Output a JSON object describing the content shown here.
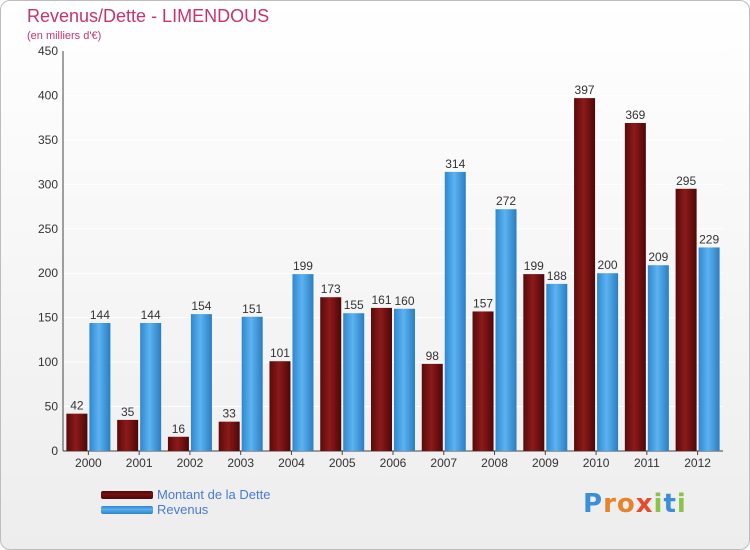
{
  "title": "Revenus/Dette - LIMENDOUS",
  "subtitle": "(en milliers d'€)",
  "colors": {
    "dette": "#7a1010",
    "revenus": "#3f9be0",
    "title": "#c8336b",
    "legend_text": "#4a7ad6"
  },
  "legend": {
    "items": [
      {
        "label": "Montant de la Dette",
        "color": "#7a1010"
      },
      {
        "label": "Revenus",
        "color": "#3f9be0"
      }
    ]
  },
  "logo": {
    "text": "Proxiti",
    "letters": [
      "P",
      "r",
      "o",
      "x",
      "i",
      "t",
      "i"
    ]
  },
  "chart_data": {
    "type": "bar",
    "title": "Revenus/Dette - LIMENDOUS",
    "subtitle": "(en milliers d'€)",
    "categories": [
      "2000",
      "2001",
      "2002",
      "2003",
      "2004",
      "2005",
      "2006",
      "2007",
      "2008",
      "2009",
      "2010",
      "2011",
      "2012"
    ],
    "series": [
      {
        "name": "Montant de la Dette",
        "color": "#7a1010",
        "values": [
          42,
          35,
          16,
          33,
          101,
          173,
          161,
          98,
          157,
          199,
          397,
          369,
          295
        ]
      },
      {
        "name": "Revenus",
        "color": "#3f9be0",
        "values": [
          144,
          144,
          154,
          151,
          199,
          155,
          160,
          314,
          272,
          188,
          200,
          209,
          229
        ]
      }
    ],
    "ylim": [
      0,
      450
    ],
    "yticks": [
      0,
      50,
      100,
      150,
      200,
      250,
      300,
      350,
      400,
      450
    ],
    "grid": true,
    "legend_position": "bottom-left"
  }
}
